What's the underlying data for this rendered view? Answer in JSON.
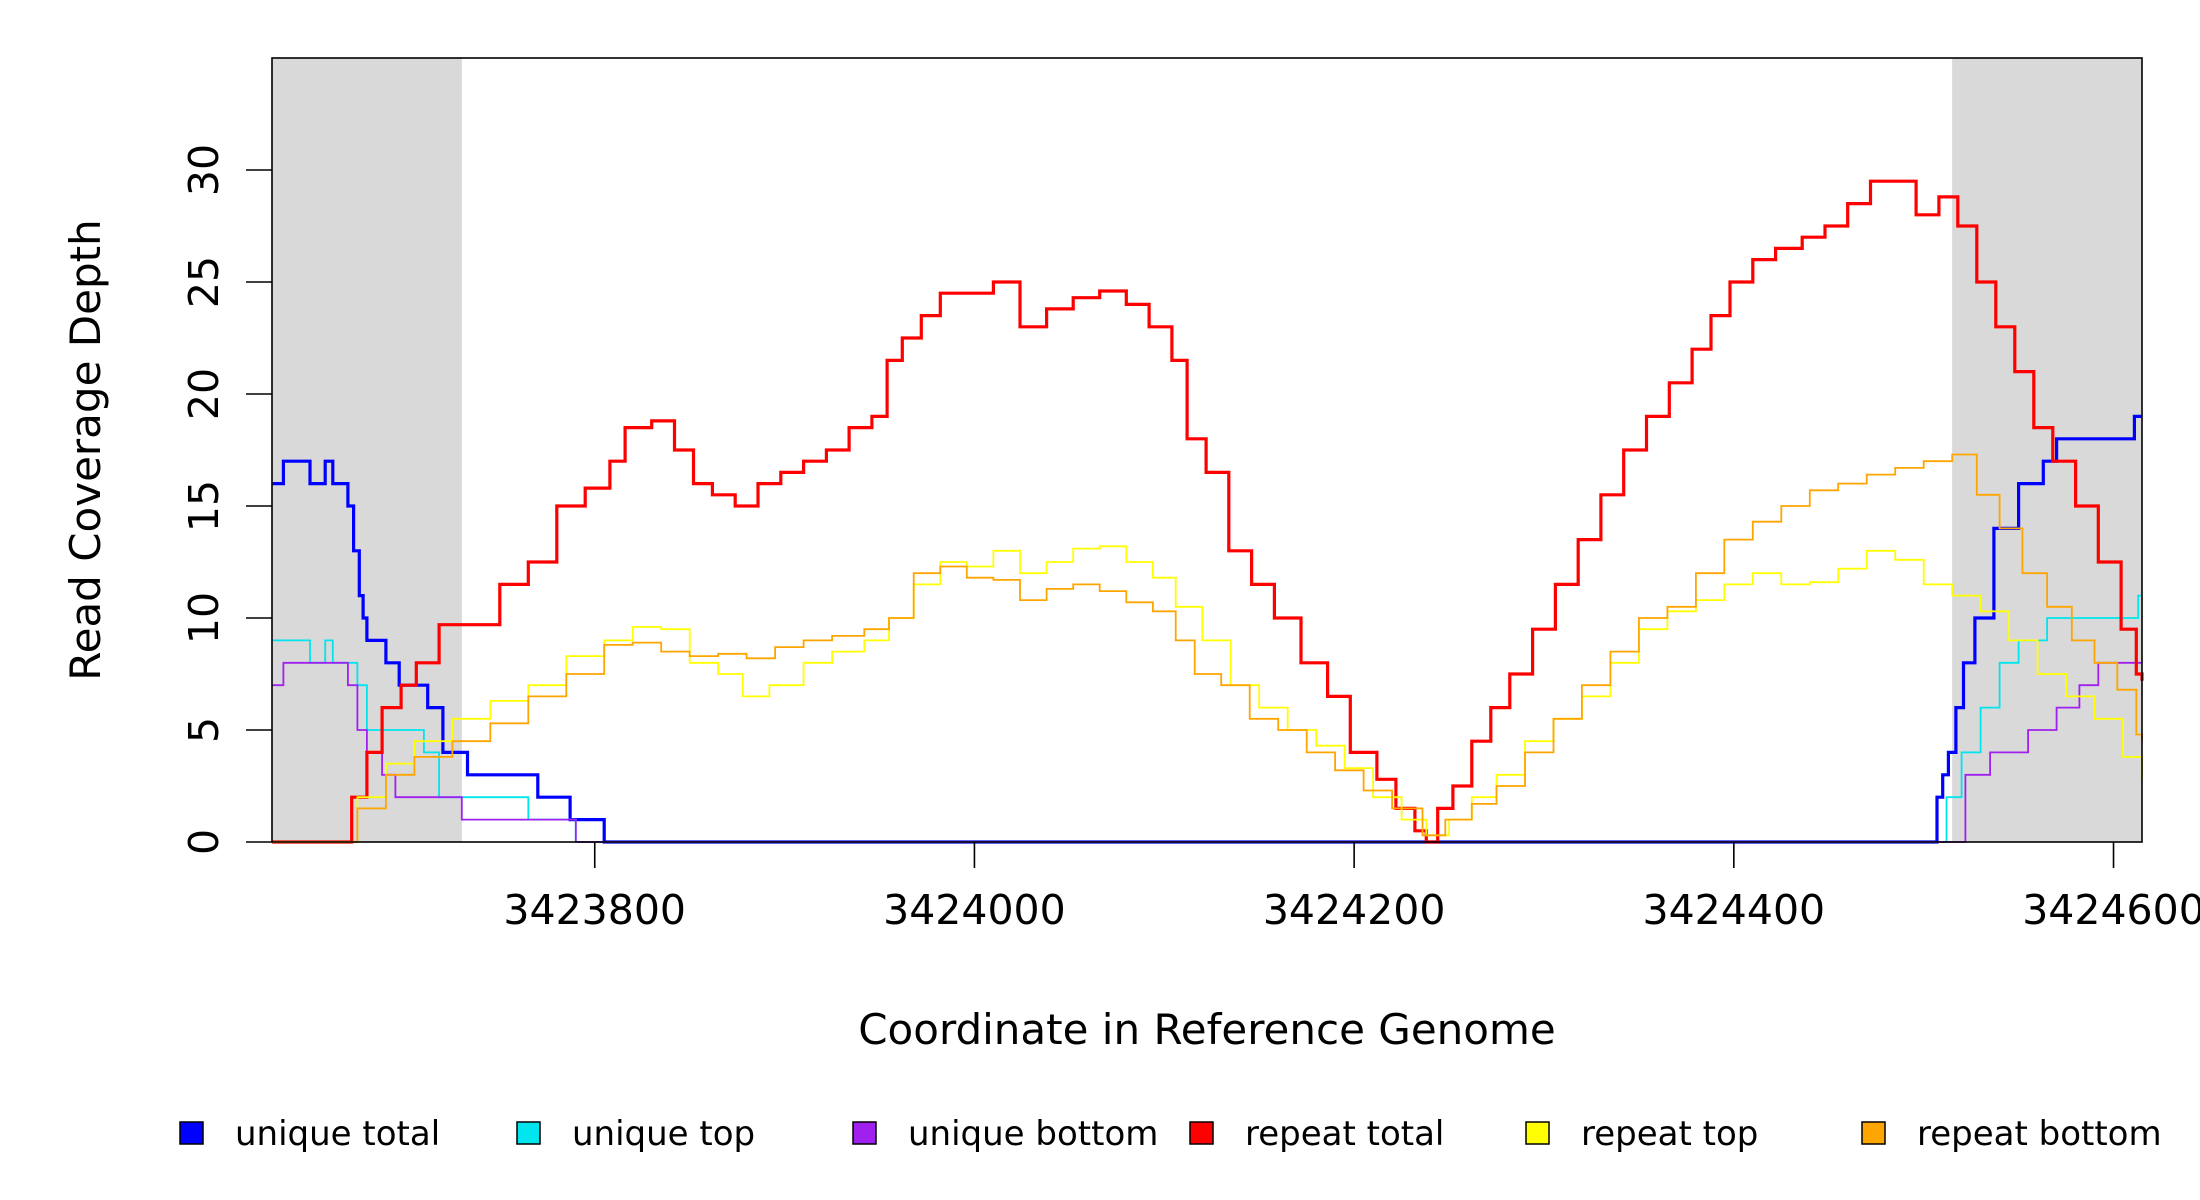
{
  "chart_data": {
    "type": "line",
    "step": true,
    "xlabel": "Coordinate in Reference Genome",
    "ylabel": "Read Coverage Depth",
    "xlim": [
      3423630,
      3424615
    ],
    "ylim": [
      0,
      35
    ],
    "xticks": [
      3423800,
      3424000,
      3424200,
      3424400,
      3424600
    ],
    "yticks": [
      0,
      5,
      10,
      15,
      20,
      25,
      30
    ],
    "xtick_labels": [
      "3423800",
      "3424000",
      "3424200",
      "3424400",
      "3424600"
    ],
    "ytick_labels": [
      "0",
      "5",
      "10",
      "15",
      "20",
      "25",
      "30"
    ],
    "shaded_regions": [
      {
        "x0": 3423630,
        "x1": 3423730,
        "color": "#d9d9d9"
      },
      {
        "x0": 3424515,
        "x1": 3424615,
        "color": "#d9d9d9"
      }
    ],
    "legend_position": "bottom",
    "series": [
      {
        "name": "unique total",
        "color": "#0000ff",
        "line_width": 3.2,
        "points": [
          [
            3423630,
            16
          ],
          [
            3423636,
            17
          ],
          [
            3423650,
            16
          ],
          [
            3423658,
            17
          ],
          [
            3423662,
            16
          ],
          [
            3423670,
            15
          ],
          [
            3423673,
            13
          ],
          [
            3423676,
            11
          ],
          [
            3423678,
            10
          ],
          [
            3423680,
            9
          ],
          [
            3423690,
            8
          ],
          [
            3423697,
            7
          ],
          [
            3423712,
            6
          ],
          [
            3423720,
            4
          ],
          [
            3423728,
            4
          ],
          [
            3423733,
            3
          ],
          [
            3423770,
            2
          ],
          [
            3423787,
            1
          ],
          [
            3423805,
            0
          ],
          [
            3424505,
            0
          ],
          [
            3424507,
            2
          ],
          [
            3424510,
            3
          ],
          [
            3424513,
            4
          ],
          [
            3424517,
            6
          ],
          [
            3424521,
            8
          ],
          [
            3424527,
            10
          ],
          [
            3424537,
            14
          ],
          [
            3424550,
            16
          ],
          [
            3424563,
            17
          ],
          [
            3424570,
            18
          ],
          [
            3424597,
            18
          ],
          [
            3424611,
            19
          ],
          [
            3424615,
            19
          ]
        ]
      },
      {
        "name": "unique top",
        "color": "#00e5ee",
        "line_width": 1.8,
        "points": [
          [
            3423630,
            9
          ],
          [
            3423650,
            8
          ],
          [
            3423658,
            9
          ],
          [
            3423662,
            8
          ],
          [
            3423675,
            7
          ],
          [
            3423680,
            5
          ],
          [
            3423710,
            4
          ],
          [
            3423718,
            2
          ],
          [
            3423765,
            1
          ],
          [
            3423790,
            0
          ],
          [
            3424508,
            0
          ],
          [
            3424512,
            2
          ],
          [
            3424520,
            4
          ],
          [
            3424530,
            6
          ],
          [
            3424540,
            8
          ],
          [
            3424550,
            9
          ],
          [
            3424565,
            10
          ],
          [
            3424610,
            10
          ],
          [
            3424613,
            11
          ],
          [
            3424615,
            11
          ]
        ]
      },
      {
        "name": "unique bottom",
        "color": "#a020f0",
        "line_width": 1.8,
        "points": [
          [
            3423630,
            7
          ],
          [
            3423636,
            8
          ],
          [
            3423670,
            7
          ],
          [
            3423675,
            5
          ],
          [
            3423680,
            4
          ],
          [
            3423688,
            3
          ],
          [
            3423695,
            2
          ],
          [
            3423730,
            1
          ],
          [
            3423790,
            0
          ],
          [
            3424518,
            0
          ],
          [
            3424522,
            3
          ],
          [
            3424535,
            4
          ],
          [
            3424555,
            5
          ],
          [
            3424570,
            6
          ],
          [
            3424582,
            7
          ],
          [
            3424592,
            8
          ],
          [
            3424615,
            8
          ]
        ]
      },
      {
        "name": "repeat total",
        "color": "#ff0000",
        "line_width": 3.2,
        "points": [
          [
            3423630,
            0
          ],
          [
            3423665,
            0
          ],
          [
            3423672,
            2
          ],
          [
            3423680,
            4
          ],
          [
            3423688,
            6
          ],
          [
            3423698,
            7
          ],
          [
            3423706,
            8
          ],
          [
            3423718,
            9.7
          ],
          [
            3423735,
            9.7
          ],
          [
            3423750,
            11.5
          ],
          [
            3423765,
            12.5
          ],
          [
            3423780,
            15
          ],
          [
            3423795,
            15.8
          ],
          [
            3423808,
            17
          ],
          [
            3423816,
            18.5
          ],
          [
            3423830,
            18.8
          ],
          [
            3423842,
            17.5
          ],
          [
            3423852,
            16
          ],
          [
            3423862,
            15.5
          ],
          [
            3423874,
            15
          ],
          [
            3423886,
            16
          ],
          [
            3423898,
            16.5
          ],
          [
            3423910,
            17
          ],
          [
            3423922,
            17.5
          ],
          [
            3423934,
            18.5
          ],
          [
            3423946,
            19
          ],
          [
            3423954,
            21.5
          ],
          [
            3423962,
            22.5
          ],
          [
            3423972,
            23.5
          ],
          [
            3423982,
            24.5
          ],
          [
            3423996,
            24.5
          ],
          [
            3424010,
            25
          ],
          [
            3424024,
            23
          ],
          [
            3424038,
            23.8
          ],
          [
            3424052,
            24.3
          ],
          [
            3424066,
            24.6
          ],
          [
            3424080,
            24
          ],
          [
            3424092,
            23
          ],
          [
            3424104,
            21.5
          ],
          [
            3424112,
            18
          ],
          [
            3424122,
            16.5
          ],
          [
            3424134,
            13
          ],
          [
            3424146,
            11.5
          ],
          [
            3424158,
            10
          ],
          [
            3424172,
            8
          ],
          [
            3424186,
            6.5
          ],
          [
            3424198,
            4
          ],
          [
            3424212,
            2.8
          ],
          [
            3424222,
            1.5
          ],
          [
            3424232,
            0.5
          ],
          [
            3424238,
            0
          ],
          [
            3424244,
            1.5
          ],
          [
            3424252,
            2.5
          ],
          [
            3424262,
            4.5
          ],
          [
            3424272,
            6
          ],
          [
            3424282,
            7.5
          ],
          [
            3424294,
            9.5
          ],
          [
            3424306,
            11.5
          ],
          [
            3424318,
            13.5
          ],
          [
            3424330,
            15.5
          ],
          [
            3424342,
            17.5
          ],
          [
            3424354,
            19
          ],
          [
            3424366,
            20.5
          ],
          [
            3424378,
            22
          ],
          [
            3424388,
            23.5
          ],
          [
            3424398,
            25
          ],
          [
            3424410,
            26
          ],
          [
            3424422,
            26.5
          ],
          [
            3424436,
            27
          ],
          [
            3424448,
            27.5
          ],
          [
            3424460,
            28.5
          ],
          [
            3424472,
            29.5
          ],
          [
            3424486,
            29.5
          ],
          [
            3424496,
            28
          ],
          [
            3424508,
            28.8
          ],
          [
            3424518,
            27.5
          ],
          [
            3424528,
            25
          ],
          [
            3424538,
            23
          ],
          [
            3424548,
            21
          ],
          [
            3424558,
            18.5
          ],
          [
            3424568,
            17
          ],
          [
            3424580,
            15
          ],
          [
            3424592,
            12.5
          ],
          [
            3424604,
            9.5
          ],
          [
            3424612,
            7.5
          ],
          [
            3424615,
            7.2
          ]
        ]
      },
      {
        "name": "repeat top",
        "color": "#ffff00",
        "line_width": 1.8,
        "points": [
          [
            3423630,
            0
          ],
          [
            3423665,
            0
          ],
          [
            3423675,
            2
          ],
          [
            3423690,
            3.5
          ],
          [
            3423705,
            4.5
          ],
          [
            3423725,
            5.5
          ],
          [
            3423745,
            6.3
          ],
          [
            3423765,
            7
          ],
          [
            3423785,
            8.3
          ],
          [
            3423805,
            9
          ],
          [
            3423820,
            9.6
          ],
          [
            3423835,
            9.5
          ],
          [
            3423850,
            8
          ],
          [
            3423865,
            7.5
          ],
          [
            3423878,
            6.5
          ],
          [
            3423892,
            7
          ],
          [
            3423910,
            8
          ],
          [
            3423925,
            8.5
          ],
          [
            3423942,
            9
          ],
          [
            3423955,
            10
          ],
          [
            3423968,
            11.5
          ],
          [
            3423982,
            12.5
          ],
          [
            3423996,
            12.3
          ],
          [
            3424010,
            13
          ],
          [
            3424024,
            12
          ],
          [
            3424038,
            12.5
          ],
          [
            3424052,
            13.1
          ],
          [
            3424066,
            13.2
          ],
          [
            3424080,
            12.5
          ],
          [
            3424094,
            11.8
          ],
          [
            3424106,
            10.5
          ],
          [
            3424120,
            9
          ],
          [
            3424135,
            7
          ],
          [
            3424150,
            6
          ],
          [
            3424165,
            5
          ],
          [
            3424180,
            4.3
          ],
          [
            3424195,
            3.3
          ],
          [
            3424210,
            2
          ],
          [
            3424225,
            1
          ],
          [
            3424238,
            0.3
          ],
          [
            3424250,
            1
          ],
          [
            3424262,
            2
          ],
          [
            3424275,
            3
          ],
          [
            3424290,
            4.5
          ],
          [
            3424305,
            5.5
          ],
          [
            3424320,
            6.5
          ],
          [
            3424335,
            8
          ],
          [
            3424350,
            9.5
          ],
          [
            3424365,
            10.3
          ],
          [
            3424380,
            10.8
          ],
          [
            3424395,
            11.5
          ],
          [
            3424410,
            12
          ],
          [
            3424425,
            11.5
          ],
          [
            3424440,
            11.6
          ],
          [
            3424455,
            12.2
          ],
          [
            3424470,
            13
          ],
          [
            3424485,
            12.6
          ],
          [
            3424500,
            11.5
          ],
          [
            3424515,
            11
          ],
          [
            3424530,
            10.3
          ],
          [
            3424545,
            9
          ],
          [
            3424560,
            7.5
          ],
          [
            3424575,
            6.5
          ],
          [
            3424590,
            5.5
          ],
          [
            3424605,
            3.8
          ],
          [
            3424615,
            2.8
          ]
        ]
      },
      {
        "name": "repeat bottom",
        "color": "#ffa500",
        "line_width": 1.8,
        "points": [
          [
            3423630,
            0
          ],
          [
            3423665,
            0
          ],
          [
            3423675,
            1.5
          ],
          [
            3423690,
            3
          ],
          [
            3423705,
            3.8
          ],
          [
            3423725,
            4.5
          ],
          [
            3423745,
            5.3
          ],
          [
            3423765,
            6.5
          ],
          [
            3423785,
            7.5
          ],
          [
            3423805,
            8.8
          ],
          [
            3423820,
            8.9
          ],
          [
            3423835,
            8.5
          ],
          [
            3423850,
            8.3
          ],
          [
            3423865,
            8.4
          ],
          [
            3423880,
            8.2
          ],
          [
            3423895,
            8.7
          ],
          [
            3423910,
            9
          ],
          [
            3423925,
            9.2
          ],
          [
            3423942,
            9.5
          ],
          [
            3423955,
            10
          ],
          [
            3423968,
            12
          ],
          [
            3423982,
            12.3
          ],
          [
            3423996,
            11.8
          ],
          [
            3424010,
            11.7
          ],
          [
            3424024,
            10.8
          ],
          [
            3424038,
            11.3
          ],
          [
            3424052,
            11.5
          ],
          [
            3424066,
            11.2
          ],
          [
            3424080,
            10.7
          ],
          [
            3424094,
            10.3
          ],
          [
            3424106,
            9
          ],
          [
            3424116,
            7.5
          ],
          [
            3424130,
            7
          ],
          [
            3424145,
            5.5
          ],
          [
            3424160,
            5
          ],
          [
            3424175,
            4
          ],
          [
            3424190,
            3.2
          ],
          [
            3424205,
            2.3
          ],
          [
            3424220,
            1.5
          ],
          [
            3424236,
            0.3
          ],
          [
            3424248,
            1
          ],
          [
            3424262,
            1.7
          ],
          [
            3424275,
            2.5
          ],
          [
            3424290,
            4
          ],
          [
            3424305,
            5.5
          ],
          [
            3424320,
            7
          ],
          [
            3424335,
            8.5
          ],
          [
            3424350,
            10
          ],
          [
            3424365,
            10.5
          ],
          [
            3424380,
            12
          ],
          [
            3424395,
            13.5
          ],
          [
            3424410,
            14.3
          ],
          [
            3424425,
            15
          ],
          [
            3424440,
            15.7
          ],
          [
            3424455,
            16
          ],
          [
            3424470,
            16.4
          ],
          [
            3424485,
            16.7
          ],
          [
            3424500,
            17
          ],
          [
            3424515,
            17.3
          ],
          [
            3424528,
            15.5
          ],
          [
            3424540,
            14
          ],
          [
            3424552,
            12
          ],
          [
            3424565,
            10.5
          ],
          [
            3424578,
            9
          ],
          [
            3424590,
            8
          ],
          [
            3424602,
            6.8
          ],
          [
            3424612,
            4.8
          ],
          [
            3424615,
            4.5
          ]
        ]
      }
    ]
  }
}
